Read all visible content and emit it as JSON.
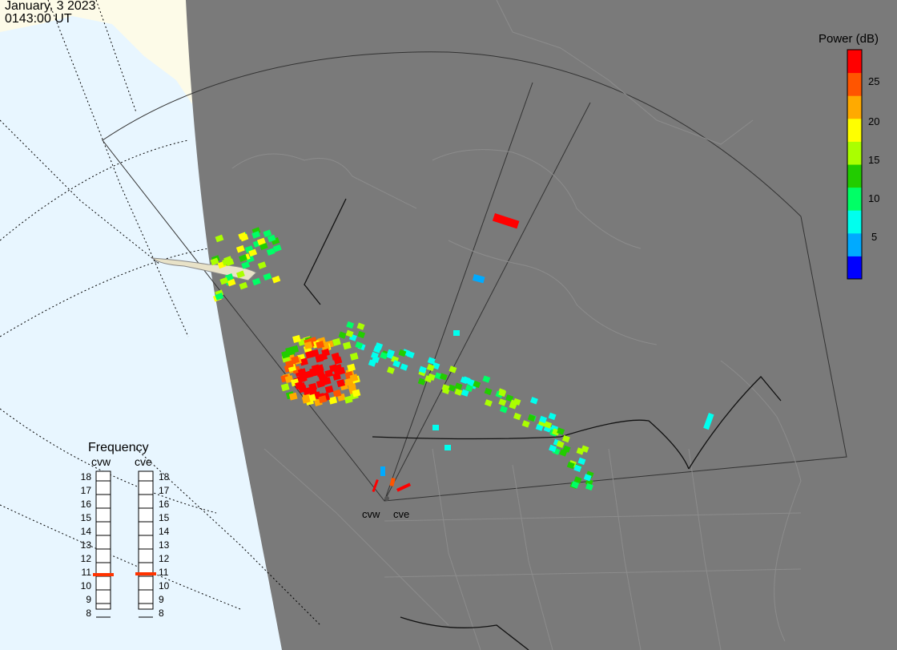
{
  "header": {
    "date": "January, 3 2023",
    "time": "0143:00 UT"
  },
  "colorbar": {
    "title": "Power (dB)",
    "ticks": [
      "25",
      "20",
      "15",
      "10",
      "5"
    ],
    "colors": [
      "#0000ff",
      "#00aaff",
      "#00ffee",
      "#00ff66",
      "#22cc00",
      "#aaff00",
      "#ffff00",
      "#ffaa00",
      "#ff5500",
      "#ff0000"
    ]
  },
  "frequency_panel": {
    "title": "Frequency",
    "radars": [
      {
        "name": "cvw",
        "freq_mhz": 10.6
      },
      {
        "name": "cve",
        "freq_mhz": 10.6
      }
    ],
    "ticks": [
      "18",
      "17",
      "16",
      "15",
      "14",
      "13",
      "12",
      "11",
      "10",
      "9",
      "8"
    ]
  },
  "radars": [
    {
      "name": "cvw"
    },
    {
      "name": "cve"
    }
  ]
}
